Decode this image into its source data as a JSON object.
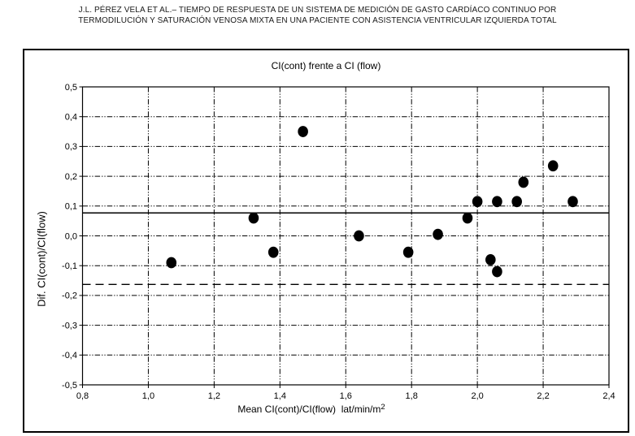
{
  "header": {
    "line1": "J.L. PÉREZ VELA ET AL.– TIEMPO DE RESPUESTA DE UN SISTEMA DE MEDICIÓN DE GASTO CARDÍACO CONTINUO POR",
    "line2": "TERMODILUCIÓN Y SATURACIÓN VENOSA MIXTA EN UNA PACIENTE CON ASISTENCIA VENTRICULAR IZQUIERDA TOTAL"
  },
  "chart_data": {
    "type": "scatter",
    "title": "CI(cont) frente a CI (flow)",
    "xlabel": "Mean CI(cont)/CI(flow)  lat/min/m",
    "xlabel_superscript": "2",
    "ylabel": "Dif. CI(cont)/CI(flow)",
    "xlim": [
      0.8,
      2.4
    ],
    "ylim": [
      -0.5,
      0.5
    ],
    "x_ticks": [
      0.8,
      1.0,
      1.2,
      1.4,
      1.6,
      1.8,
      2.0,
      2.2,
      2.4
    ],
    "x_tick_labels": [
      "0,8",
      "1,0",
      "1,2",
      "1,4",
      "1,6",
      "1,8",
      "2,0",
      "2,2",
      "2,4"
    ],
    "y_ticks": [
      0.5,
      0.4,
      0.3,
      0.2,
      0.1,
      0.0,
      -0.1,
      -0.2,
      -0.3,
      -0.4,
      -0.5
    ],
    "y_tick_labels": [
      "0,5",
      "0,4",
      "0,3",
      "0,2",
      "0,1",
      "0,0",
      "-0,1",
      "-0,2",
      "-0,3",
      "-0,4",
      "-0,5"
    ],
    "grid": {
      "show": true,
      "style": "dash-dot",
      "color": "#000000"
    },
    "legend": "none",
    "points": [
      [
        1.07,
        -0.09
      ],
      [
        1.32,
        0.06
      ],
      [
        1.38,
        -0.055
      ],
      [
        1.47,
        0.35
      ],
      [
        1.64,
        0.0
      ],
      [
        1.79,
        -0.055
      ],
      [
        1.88,
        0.005
      ],
      [
        1.97,
        0.06
      ],
      [
        2.0,
        0.115
      ],
      [
        2.04,
        -0.08
      ],
      [
        2.06,
        0.115
      ],
      [
        2.06,
        -0.12
      ],
      [
        2.12,
        0.115
      ],
      [
        2.14,
        0.18
      ],
      [
        2.23,
        0.235
      ],
      [
        2.29,
        0.115
      ]
    ],
    "reference_lines": [
      {
        "name": "mean-difference",
        "value": 0.077,
        "style": "solid"
      },
      {
        "name": "lower-limit",
        "value": -0.163,
        "style": "dashed"
      }
    ],
    "marker": {
      "shape": "ellipse",
      "color": "#000000",
      "rx": 6.3,
      "ry": 6.9
    }
  },
  "colors": {
    "foreground": "#000000",
    "background": "#ffffff"
  }
}
